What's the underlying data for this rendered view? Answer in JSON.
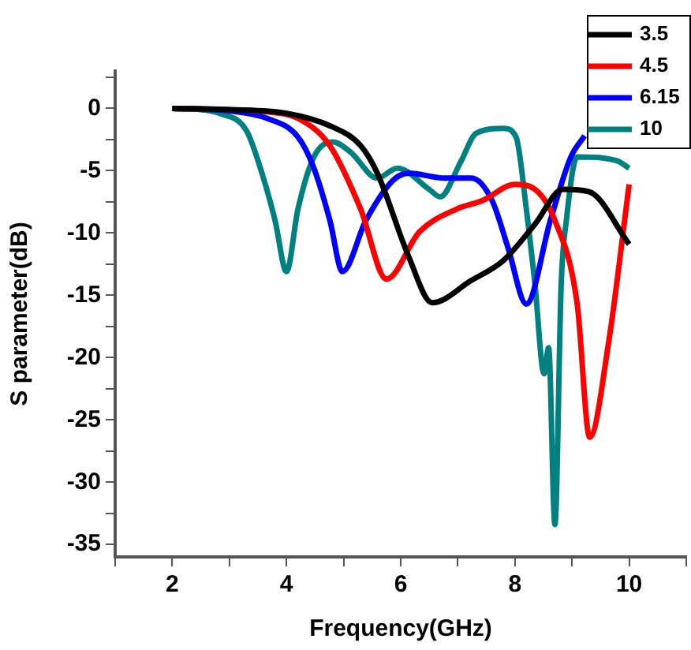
{
  "chart_data": {
    "type": "line",
    "xlabel": "Frequency(GHz)",
    "ylabel": "S parameter(dB)",
    "xlim": [
      1,
      11
    ],
    "xticks": [
      {
        "value": 1,
        "label": null
      },
      2,
      {
        "value": 3,
        "label": null
      },
      4,
      {
        "value": 5,
        "label": null
      },
      6,
      {
        "value": 7,
        "label": null
      },
      8,
      {
        "value": 9,
        "label": null
      },
      10,
      {
        "value": 11,
        "label": null
      }
    ],
    "ylim": [
      -36,
      3
    ],
    "yticks": [
      {
        "value": 2.5,
        "label": null
      },
      0,
      {
        "value": -2.5,
        "label": null
      },
      -5,
      {
        "value": -7.5,
        "label": null
      },
      -10,
      {
        "value": -12.5,
        "label": null
      },
      -15,
      {
        "value": -17.5,
        "label": null
      },
      -20,
      {
        "value": -22.5,
        "label": null
      },
      -25,
      {
        "value": -27.5,
        "label": null
      },
      -30,
      {
        "value": -32.5,
        "label": null
      },
      -35
    ],
    "grid": false,
    "legend": "top right",
    "marker": "none",
    "line_style": "solid",
    "series": [
      {
        "name": "3.5",
        "color": "#000000",
        "x": [
          2,
          3,
          4,
          4.76,
          5.3,
          5.59,
          6.14,
          6.55,
          7.24,
          7.8,
          8.35,
          8.84,
          9.3,
          10
        ],
        "values": [
          0,
          -0.1,
          -0.4,
          -1.4,
          -3,
          -5.2,
          -11.9,
          -15.6,
          -13.8,
          -12.2,
          -9.3,
          -6.5,
          -6.7,
          -10.9
        ]
      },
      {
        "name": "4.5",
        "color": "#ff0000",
        "x": [
          2,
          3,
          3.7,
          4.2,
          4.76,
          5.3,
          5.75,
          6.33,
          6.97,
          7.43,
          8,
          8.35,
          8.7,
          9.09,
          9.31,
          9.64,
          10
        ],
        "values": [
          0,
          -0.1,
          -0.3,
          -0.8,
          -3,
          -8.1,
          -13.7,
          -9.9,
          -8.1,
          -7.4,
          -6.1,
          -6.5,
          -9,
          -15.7,
          -26.4,
          -18.8,
          -6.1
        ]
      },
      {
        "name": "6.15",
        "color": "#0000ff",
        "x": [
          2,
          3,
          3.66,
          4.2,
          4.48,
          4.76,
          4.98,
          5.39,
          5.86,
          6.14,
          6.77,
          7.24,
          7.6,
          7.88,
          8.2,
          8.62,
          8.98,
          9.22
        ],
        "values": [
          0,
          -0.2,
          -0.8,
          -2.3,
          -4.8,
          -9,
          -13.1,
          -9,
          -5.8,
          -5.2,
          -5.6,
          -5.6,
          -7.4,
          -11.2,
          -15.7,
          -9,
          -3.9,
          -2.2
        ]
      },
      {
        "name": "10",
        "color": "#008080",
        "x": [
          2,
          2.5,
          2.83,
          3.3,
          3.57,
          3.8,
          4,
          4.2,
          4.48,
          4.81,
          5.12,
          5.59,
          5.94,
          6.5,
          6.69,
          7.05,
          7.32,
          7.8,
          8.02,
          8.2,
          8.35,
          8.51,
          8.59,
          8.7,
          8.81,
          8.9,
          9.09,
          9.78,
          10
        ],
        "values": [
          0,
          -0.1,
          -0.4,
          -1.8,
          -5.2,
          -9,
          -13.1,
          -8.1,
          -3.9,
          -2.7,
          -3.5,
          -5.6,
          -4.8,
          -6.5,
          -7.1,
          -4.3,
          -2,
          -1.6,
          -2.3,
          -8.1,
          -14.1,
          -21.3,
          -19.2,
          -33.4,
          -14.1,
          -9,
          -3.9,
          -4.2,
          -4.8
        ]
      }
    ]
  }
}
